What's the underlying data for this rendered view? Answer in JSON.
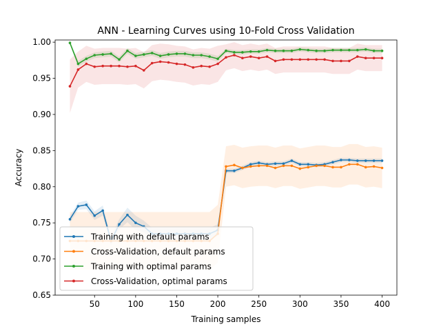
{
  "chart_data": {
    "type": "line",
    "title": "ANN - Learning Curves using 10-Fold Cross Validation",
    "xlabel": "Training samples",
    "ylabel": "Accuracy",
    "xlim": [
      2,
      418
    ],
    "ylim": [
      0.65,
      1.003
    ],
    "x_ticks": [
      50,
      100,
      150,
      200,
      250,
      300,
      350,
      400
    ],
    "y_ticks": [
      0.65,
      0.7,
      0.75,
      0.8,
      0.85,
      0.9,
      0.95,
      1.0
    ],
    "x_tick_labels": [
      "50",
      "100",
      "150",
      "200",
      "250",
      "300",
      "350",
      "400"
    ],
    "y_tick_labels": [
      "0.65",
      "0.70",
      "0.75",
      "0.80",
      "0.85",
      "0.90",
      "0.95",
      "1.00"
    ],
    "grid": false,
    "legend_position": "lower-left",
    "x": [
      20,
      30,
      40,
      50,
      60,
      70,
      80,
      90,
      100,
      110,
      120,
      130,
      140,
      150,
      160,
      170,
      180,
      190,
      200,
      210,
      220,
      230,
      240,
      250,
      260,
      270,
      280,
      290,
      300,
      310,
      320,
      330,
      340,
      350,
      360,
      370,
      380,
      390,
      400
    ],
    "series": [
      {
        "name": "Training with default params",
        "color": "#1f77b4",
        "values": [
          0.755,
          0.773,
          0.775,
          0.76,
          0.767,
          0.725,
          0.748,
          0.761,
          0.75,
          0.745,
          0.735,
          0.735,
          0.735,
          0.735,
          0.735,
          0.735,
          0.735,
          0.735,
          0.74,
          0.822,
          0.822,
          0.826,
          0.831,
          0.833,
          0.831,
          0.832,
          0.832,
          0.836,
          0.831,
          0.831,
          0.83,
          0.831,
          0.834,
          0.837,
          0.837,
          0.836,
          0.836,
          0.836,
          0.836
        ],
        "band_width": [
          0.005,
          0.005,
          0.006,
          0.006,
          0.007,
          0.006,
          0.007,
          0.01,
          0.01,
          0.008,
          0.008,
          0.008,
          0.008,
          0.008,
          0.008,
          0.008,
          0.008,
          0.008,
          0.008,
          0.003,
          0.003,
          0.003,
          0.003,
          0.003,
          0.003,
          0.003,
          0.003,
          0.003,
          0.003,
          0.003,
          0.003,
          0.003,
          0.003,
          0.003,
          0.003,
          0.003,
          0.003,
          0.003,
          0.003
        ]
      },
      {
        "name": "Cross-Validation, default params",
        "color": "#ff7f0e",
        "values": [
          0.725,
          0.725,
          0.725,
          0.725,
          0.725,
          0.725,
          0.725,
          0.725,
          0.725,
          0.725,
          0.725,
          0.725,
          0.725,
          0.725,
          0.725,
          0.725,
          0.725,
          0.725,
          0.735,
          0.828,
          0.83,
          0.826,
          0.828,
          0.829,
          0.829,
          0.826,
          0.829,
          0.829,
          0.825,
          0.827,
          0.829,
          0.829,
          0.827,
          0.827,
          0.831,
          0.831,
          0.827,
          0.828,
          0.826
        ],
        "band_width": [
          0.04,
          0.04,
          0.04,
          0.04,
          0.04,
          0.04,
          0.04,
          0.04,
          0.04,
          0.04,
          0.04,
          0.04,
          0.04,
          0.04,
          0.04,
          0.04,
          0.04,
          0.04,
          0.04,
          0.028,
          0.028,
          0.028,
          0.028,
          0.028,
          0.028,
          0.028,
          0.028,
          0.028,
          0.028,
          0.028,
          0.028,
          0.028,
          0.028,
          0.028,
          0.028,
          0.028,
          0.028,
          0.028,
          0.028
        ]
      },
      {
        "name": "Training with optimal params",
        "color": "#2ca02c",
        "values": [
          0.999,
          0.97,
          0.977,
          0.982,
          0.983,
          0.984,
          0.976,
          0.988,
          0.981,
          0.983,
          0.985,
          0.981,
          0.983,
          0.984,
          0.984,
          0.982,
          0.982,
          0.98,
          0.977,
          0.988,
          0.986,
          0.986,
          0.987,
          0.987,
          0.989,
          0.988,
          0.988,
          0.988,
          0.99,
          0.989,
          0.988,
          0.988,
          0.989,
          0.989,
          0.989,
          0.989,
          0.99,
          0.988,
          0.988
        ],
        "band_width": [
          0.002,
          0.004,
          0.004,
          0.004,
          0.004,
          0.004,
          0.004,
          0.004,
          0.004,
          0.004,
          0.004,
          0.004,
          0.004,
          0.004,
          0.004,
          0.004,
          0.004,
          0.004,
          0.004,
          0.003,
          0.003,
          0.003,
          0.003,
          0.003,
          0.003,
          0.003,
          0.003,
          0.003,
          0.003,
          0.003,
          0.003,
          0.003,
          0.003,
          0.003,
          0.003,
          0.003,
          0.003,
          0.003,
          0.003
        ]
      },
      {
        "name": "Cross-Validation, optimal params",
        "color": "#d62728",
        "values": [
          0.939,
          0.962,
          0.97,
          0.966,
          0.967,
          0.967,
          0.967,
          0.966,
          0.967,
          0.961,
          0.971,
          0.973,
          0.972,
          0.97,
          0.969,
          0.965,
          0.967,
          0.966,
          0.97,
          0.979,
          0.982,
          0.978,
          0.98,
          0.978,
          0.98,
          0.974,
          0.976,
          0.976,
          0.976,
          0.976,
          0.976,
          0.976,
          0.974,
          0.974,
          0.974,
          0.98,
          0.978,
          0.978,
          0.978
        ],
        "band_width": [
          0.037,
          0.025,
          0.025,
          0.025,
          0.025,
          0.025,
          0.025,
          0.025,
          0.025,
          0.025,
          0.025,
          0.025,
          0.025,
          0.025,
          0.025,
          0.025,
          0.025,
          0.025,
          0.025,
          0.018,
          0.018,
          0.018,
          0.018,
          0.018,
          0.018,
          0.018,
          0.018,
          0.018,
          0.018,
          0.018,
          0.018,
          0.018,
          0.018,
          0.018,
          0.018,
          0.018,
          0.018,
          0.018,
          0.018
        ]
      }
    ]
  }
}
